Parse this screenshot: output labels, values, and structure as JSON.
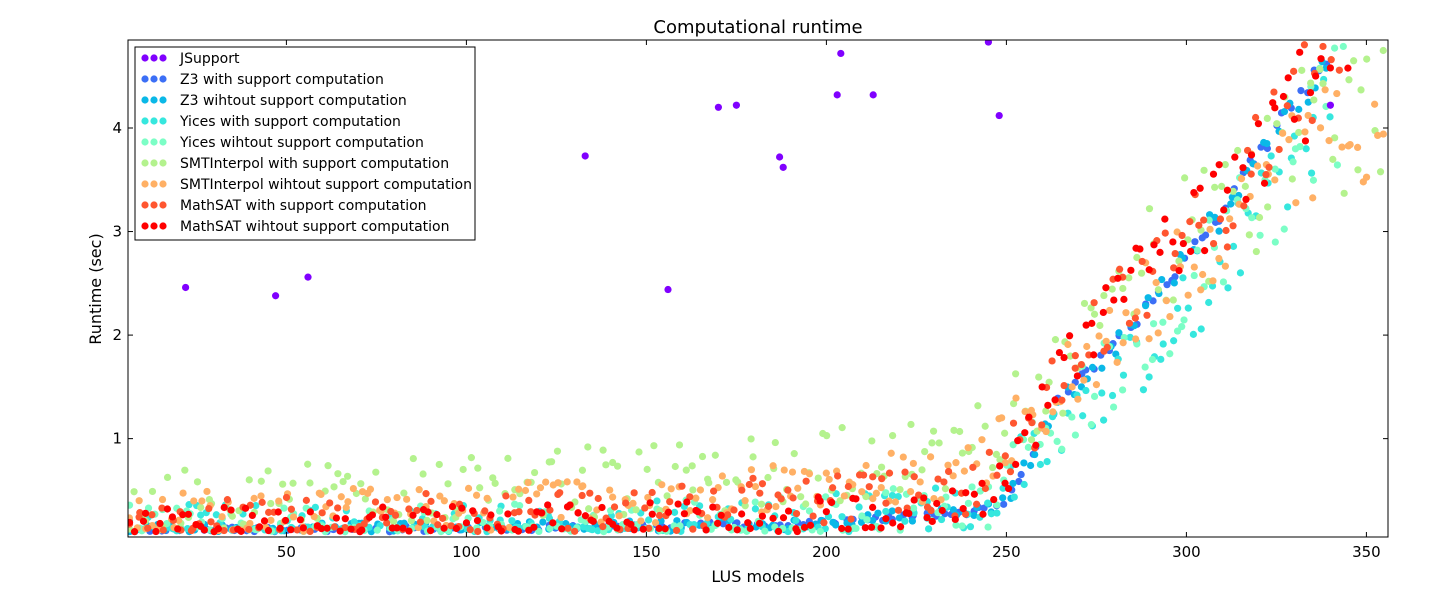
{
  "chart_data": {
    "type": "scatter",
    "title": "Computational runtime",
    "xlabel": "LUS models",
    "ylabel": "Runtime (sec)",
    "xlim": [
      6,
      356
    ],
    "ylim": [
      0.05,
      4.85
    ],
    "xticks": [
      50,
      100,
      150,
      200,
      250,
      300,
      350
    ],
    "yticks": [
      1,
      2,
      3,
      4
    ],
    "grid": false,
    "legend_position": "top-left",
    "series": [
      {
        "name": "JSupport",
        "color": "#8000ff",
        "points": [
          [
            22,
            2.46
          ],
          [
            47,
            2.38
          ],
          [
            56,
            2.56
          ],
          [
            133,
            3.73
          ],
          [
            156,
            2.44
          ],
          [
            170,
            4.2
          ],
          [
            175,
            4.22
          ],
          [
            187,
            3.72
          ],
          [
            188,
            3.62
          ],
          [
            203,
            4.32
          ],
          [
            204,
            4.72
          ],
          [
            213,
            4.32
          ],
          [
            245,
            4.83
          ],
          [
            248,
            4.12
          ],
          [
            340,
            4.22
          ]
        ]
      },
      {
        "name": "Z3 with support computation",
        "color": "#3c6ff6",
        "base": [
          [
            6,
            0.12
          ],
          [
            60,
            0.12
          ],
          [
            120,
            0.14
          ],
          [
            190,
            0.18
          ],
          [
            240,
            0.28
          ],
          [
            250,
            0.4
          ],
          [
            258,
            0.9
          ],
          [
            265,
            1.4
          ],
          [
            280,
            1.9
          ],
          [
            290,
            2.3
          ],
          [
            300,
            2.75
          ],
          [
            310,
            3.2
          ],
          [
            320,
            3.75
          ],
          [
            330,
            4.25
          ],
          [
            340,
            4.7
          ]
        ],
        "count": 170,
        "x_range": [
          6,
          340
        ],
        "spread": 0.05,
        "seed": 11
      },
      {
        "name": "Z3 wihtout support computation",
        "color": "#0ab8e7",
        "base": [
          [
            6,
            0.12
          ],
          [
            60,
            0.12
          ],
          [
            120,
            0.14
          ],
          [
            190,
            0.18
          ],
          [
            240,
            0.28
          ],
          [
            250,
            0.4
          ],
          [
            258,
            0.9
          ],
          [
            265,
            1.4
          ],
          [
            280,
            1.9
          ],
          [
            290,
            2.3
          ],
          [
            300,
            2.75
          ],
          [
            310,
            3.2
          ],
          [
            320,
            3.75
          ],
          [
            330,
            4.25
          ],
          [
            340,
            4.7
          ]
        ],
        "count": 170,
        "x_range": [
          6,
          340
        ],
        "spread": 0.12,
        "seed": 23
      },
      {
        "name": "Yices with support computation",
        "color": "#36e7de",
        "base": [
          [
            6,
            0.15
          ],
          [
            100,
            0.15
          ],
          [
            190,
            0.22
          ],
          [
            245,
            0.35
          ],
          [
            255,
            0.8
          ],
          [
            270,
            1.2
          ],
          [
            290,
            1.8
          ],
          [
            310,
            2.6
          ],
          [
            330,
            3.6
          ],
          [
            340,
            4.2
          ]
        ],
        "count": 200,
        "x_range": [
          6,
          340
        ],
        "spread": 0.4,
        "seed": 37
      },
      {
        "name": "Yices wihtout support computation",
        "color": "#7cfec6",
        "base": [
          [
            6,
            0.12
          ],
          [
            100,
            0.12
          ],
          [
            190,
            0.2
          ],
          [
            245,
            0.32
          ],
          [
            255,
            0.9
          ],
          [
            270,
            1.4
          ],
          [
            290,
            2.0
          ],
          [
            310,
            2.8
          ],
          [
            330,
            3.7
          ],
          [
            345,
            4.5
          ]
        ],
        "count": 200,
        "x_range": [
          6,
          345
        ],
        "spread": 0.45,
        "seed": 41
      },
      {
        "name": "SMTInterpol with support computation",
        "color": "#b4f28e",
        "base": [
          [
            6,
            0.4
          ],
          [
            60,
            0.45
          ],
          [
            120,
            0.55
          ],
          [
            190,
            0.7
          ],
          [
            240,
            0.9
          ],
          [
            255,
            1.3
          ],
          [
            270,
            1.8
          ],
          [
            290,
            2.6
          ],
          [
            310,
            3.2
          ],
          [
            330,
            3.8
          ],
          [
            356,
            4.5
          ]
        ],
        "count": 230,
        "x_range": [
          6,
          356
        ],
        "spread": 0.55,
        "seed": 53
      },
      {
        "name": "SMTInterpol wihtout support computation",
        "color": "#ffb065",
        "base": [
          [
            6,
            0.3
          ],
          [
            60,
            0.3
          ],
          [
            120,
            0.35
          ],
          [
            190,
            0.5
          ],
          [
            240,
            0.7
          ],
          [
            255,
            1.2
          ],
          [
            270,
            1.7
          ],
          [
            290,
            2.4
          ],
          [
            310,
            3.0
          ],
          [
            330,
            3.7
          ],
          [
            356,
            4.2
          ]
        ],
        "count": 230,
        "x_range": [
          6,
          356
        ],
        "spread": 0.4,
        "seed": 67
      },
      {
        "name": "MathSAT with support computation",
        "color": "#ff5630",
        "base": [
          [
            6,
            0.2
          ],
          [
            60,
            0.22
          ],
          [
            120,
            0.28
          ],
          [
            190,
            0.4
          ],
          [
            240,
            0.5
          ],
          [
            255,
            1.0
          ],
          [
            270,
            1.8
          ],
          [
            290,
            2.6
          ],
          [
            310,
            3.3
          ],
          [
            330,
            4.2
          ],
          [
            345,
            4.8
          ]
        ],
        "count": 210,
        "x_range": [
          6,
          345
        ],
        "spread": 0.4,
        "seed": 79
      },
      {
        "name": "MathSAT wihtout support computation",
        "color": "#ff0000",
        "base": [
          [
            6,
            0.18
          ],
          [
            60,
            0.18
          ],
          [
            120,
            0.2
          ],
          [
            190,
            0.25
          ],
          [
            240,
            0.35
          ],
          [
            250,
            0.6
          ],
          [
            260,
            1.3
          ],
          [
            270,
            1.9
          ],
          [
            290,
            2.7
          ],
          [
            310,
            3.3
          ],
          [
            330,
            4.2
          ],
          [
            345,
            4.85
          ]
        ],
        "count": 210,
        "x_range": [
          6,
          345
        ],
        "spread": 0.3,
        "seed": 91
      }
    ]
  }
}
